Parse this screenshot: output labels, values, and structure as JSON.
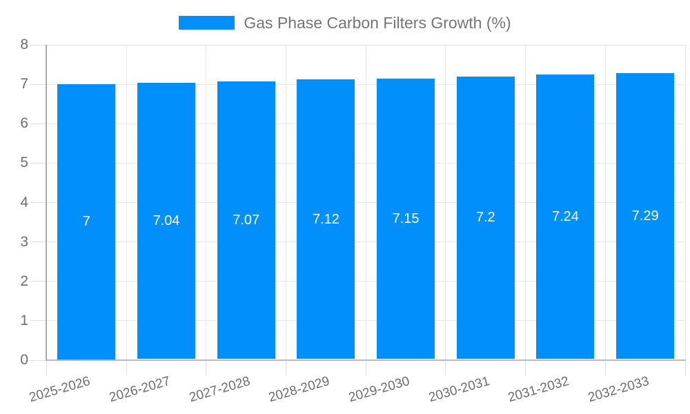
{
  "chart_data": {
    "type": "bar",
    "title": "Gas Phase Carbon Filters Growth (%)",
    "legend_label": "Gas Phase Carbon Filters Growth (%)",
    "legend_position": "top-center",
    "categories": [
      "2025-2026",
      "2026-2027",
      "2027-2028",
      "2028-2029",
      "2029-2030",
      "2030-2031",
      "2031-2032",
      "2032-2033"
    ],
    "series": [
      {
        "name": "Gas Phase Carbon Filters Growth (%)",
        "values": [
          7,
          7.04,
          7.07,
          7.12,
          7.15,
          7.2,
          7.24,
          7.29
        ]
      }
    ],
    "data_labels": [
      "7",
      "7.04",
      "7.07",
      "7.12",
      "7.15",
      "7.2",
      "7.24",
      "7.29"
    ],
    "xlabel": "",
    "ylabel": "",
    "ylim": [
      0,
      8
    ],
    "y_ticks": [
      0,
      1,
      2,
      3,
      4,
      5,
      6,
      7,
      8
    ],
    "grid": true,
    "colors": {
      "bar": "#008ffb",
      "bar_value_text": "#ffffff",
      "axis_text": "#6e6e6e",
      "legend_text": "#757575",
      "gridline": "#e7e7e7",
      "tick": "#dedede",
      "x_axis_line": "#b9b9b9",
      "y_axis_line": "#ababab"
    }
  }
}
